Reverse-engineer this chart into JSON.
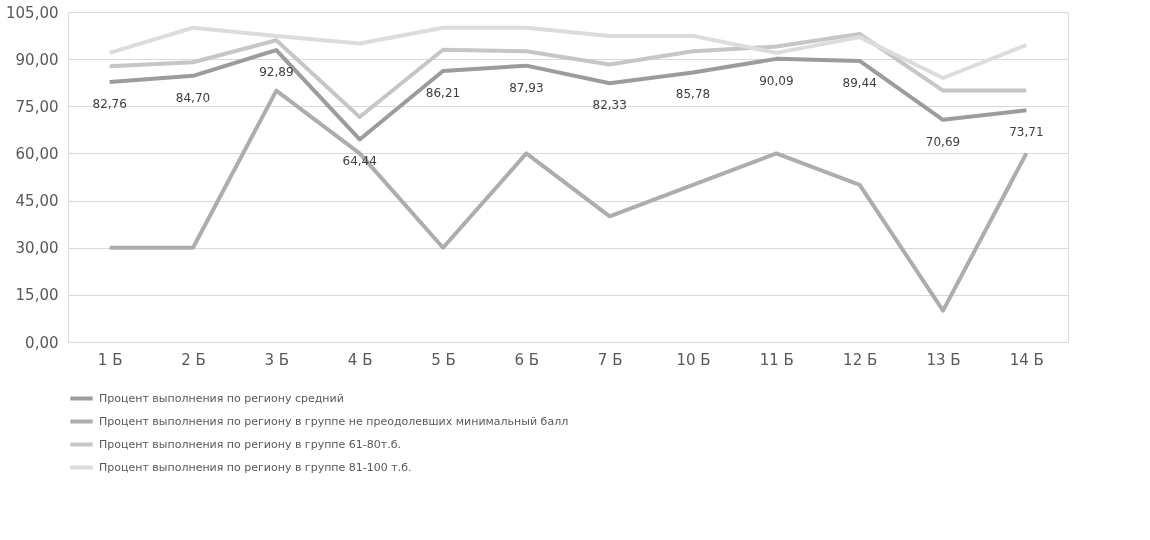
{
  "chart_data": {
    "type": "line",
    "categories": [
      "1 Б",
      "2 Б",
      "3 Б",
      "4 Б",
      "5 Б",
      "6 Б",
      "7 Б",
      "10 Б",
      "11 Б",
      "12 Б",
      "13 Б",
      "14 Б"
    ],
    "series": [
      {
        "name": "Процент выполнения по региону средний",
        "color": "#9c9c9c",
        "values": [
          82.76,
          84.7,
          92.89,
          64.44,
          86.21,
          87.93,
          82.33,
          85.78,
          90.09,
          89.44,
          70.69,
          73.71
        ],
        "value_labels": [
          "82,76",
          "84,70",
          "92,89",
          "64,44",
          "86,21",
          "87,93",
          "82,33",
          "85,78",
          "90,09",
          "89,44",
          "70,69",
          "73,71"
        ]
      },
      {
        "name": "Процент выполнения по региону в группе не преодолевших минимальный балл",
        "color": "#adadad",
        "values": [
          30,
          30,
          80,
          60,
          30,
          60,
          40,
          50,
          60,
          50,
          10,
          60
        ]
      },
      {
        "name": "Процент выполнения по региону в группе 61-80т.б.",
        "color": "#c6c6c6",
        "values": [
          87.7,
          89,
          96,
          71.6,
          93,
          92.5,
          88.3,
          92.5,
          94,
          98,
          80,
          80
        ]
      },
      {
        "name": "Процент выполнения по региону в группе 81-100 т.б.",
        "color": "#dcdcdc",
        "values": [
          92,
          100,
          97.4,
          95,
          100,
          100,
          97.4,
          97.4,
          92,
          97,
          84,
          94.5
        ]
      }
    ],
    "ylim": [
      0,
      105
    ],
    "yticks": [
      {
        "value": 0,
        "label": "0,00"
      },
      {
        "value": 15,
        "label": "15,00"
      },
      {
        "value": 30,
        "label": "30,00"
      },
      {
        "value": 45,
        "label": "45,00"
      },
      {
        "value": 60,
        "label": "60,00"
      },
      {
        "value": 75,
        "label": "75,00"
      },
      {
        "value": 90,
        "label": "90,00"
      },
      {
        "value": 105,
        "label": "105,00"
      }
    ],
    "grid": "y",
    "legend": "bottom",
    "marker": "none",
    "line_style": "solid"
  }
}
